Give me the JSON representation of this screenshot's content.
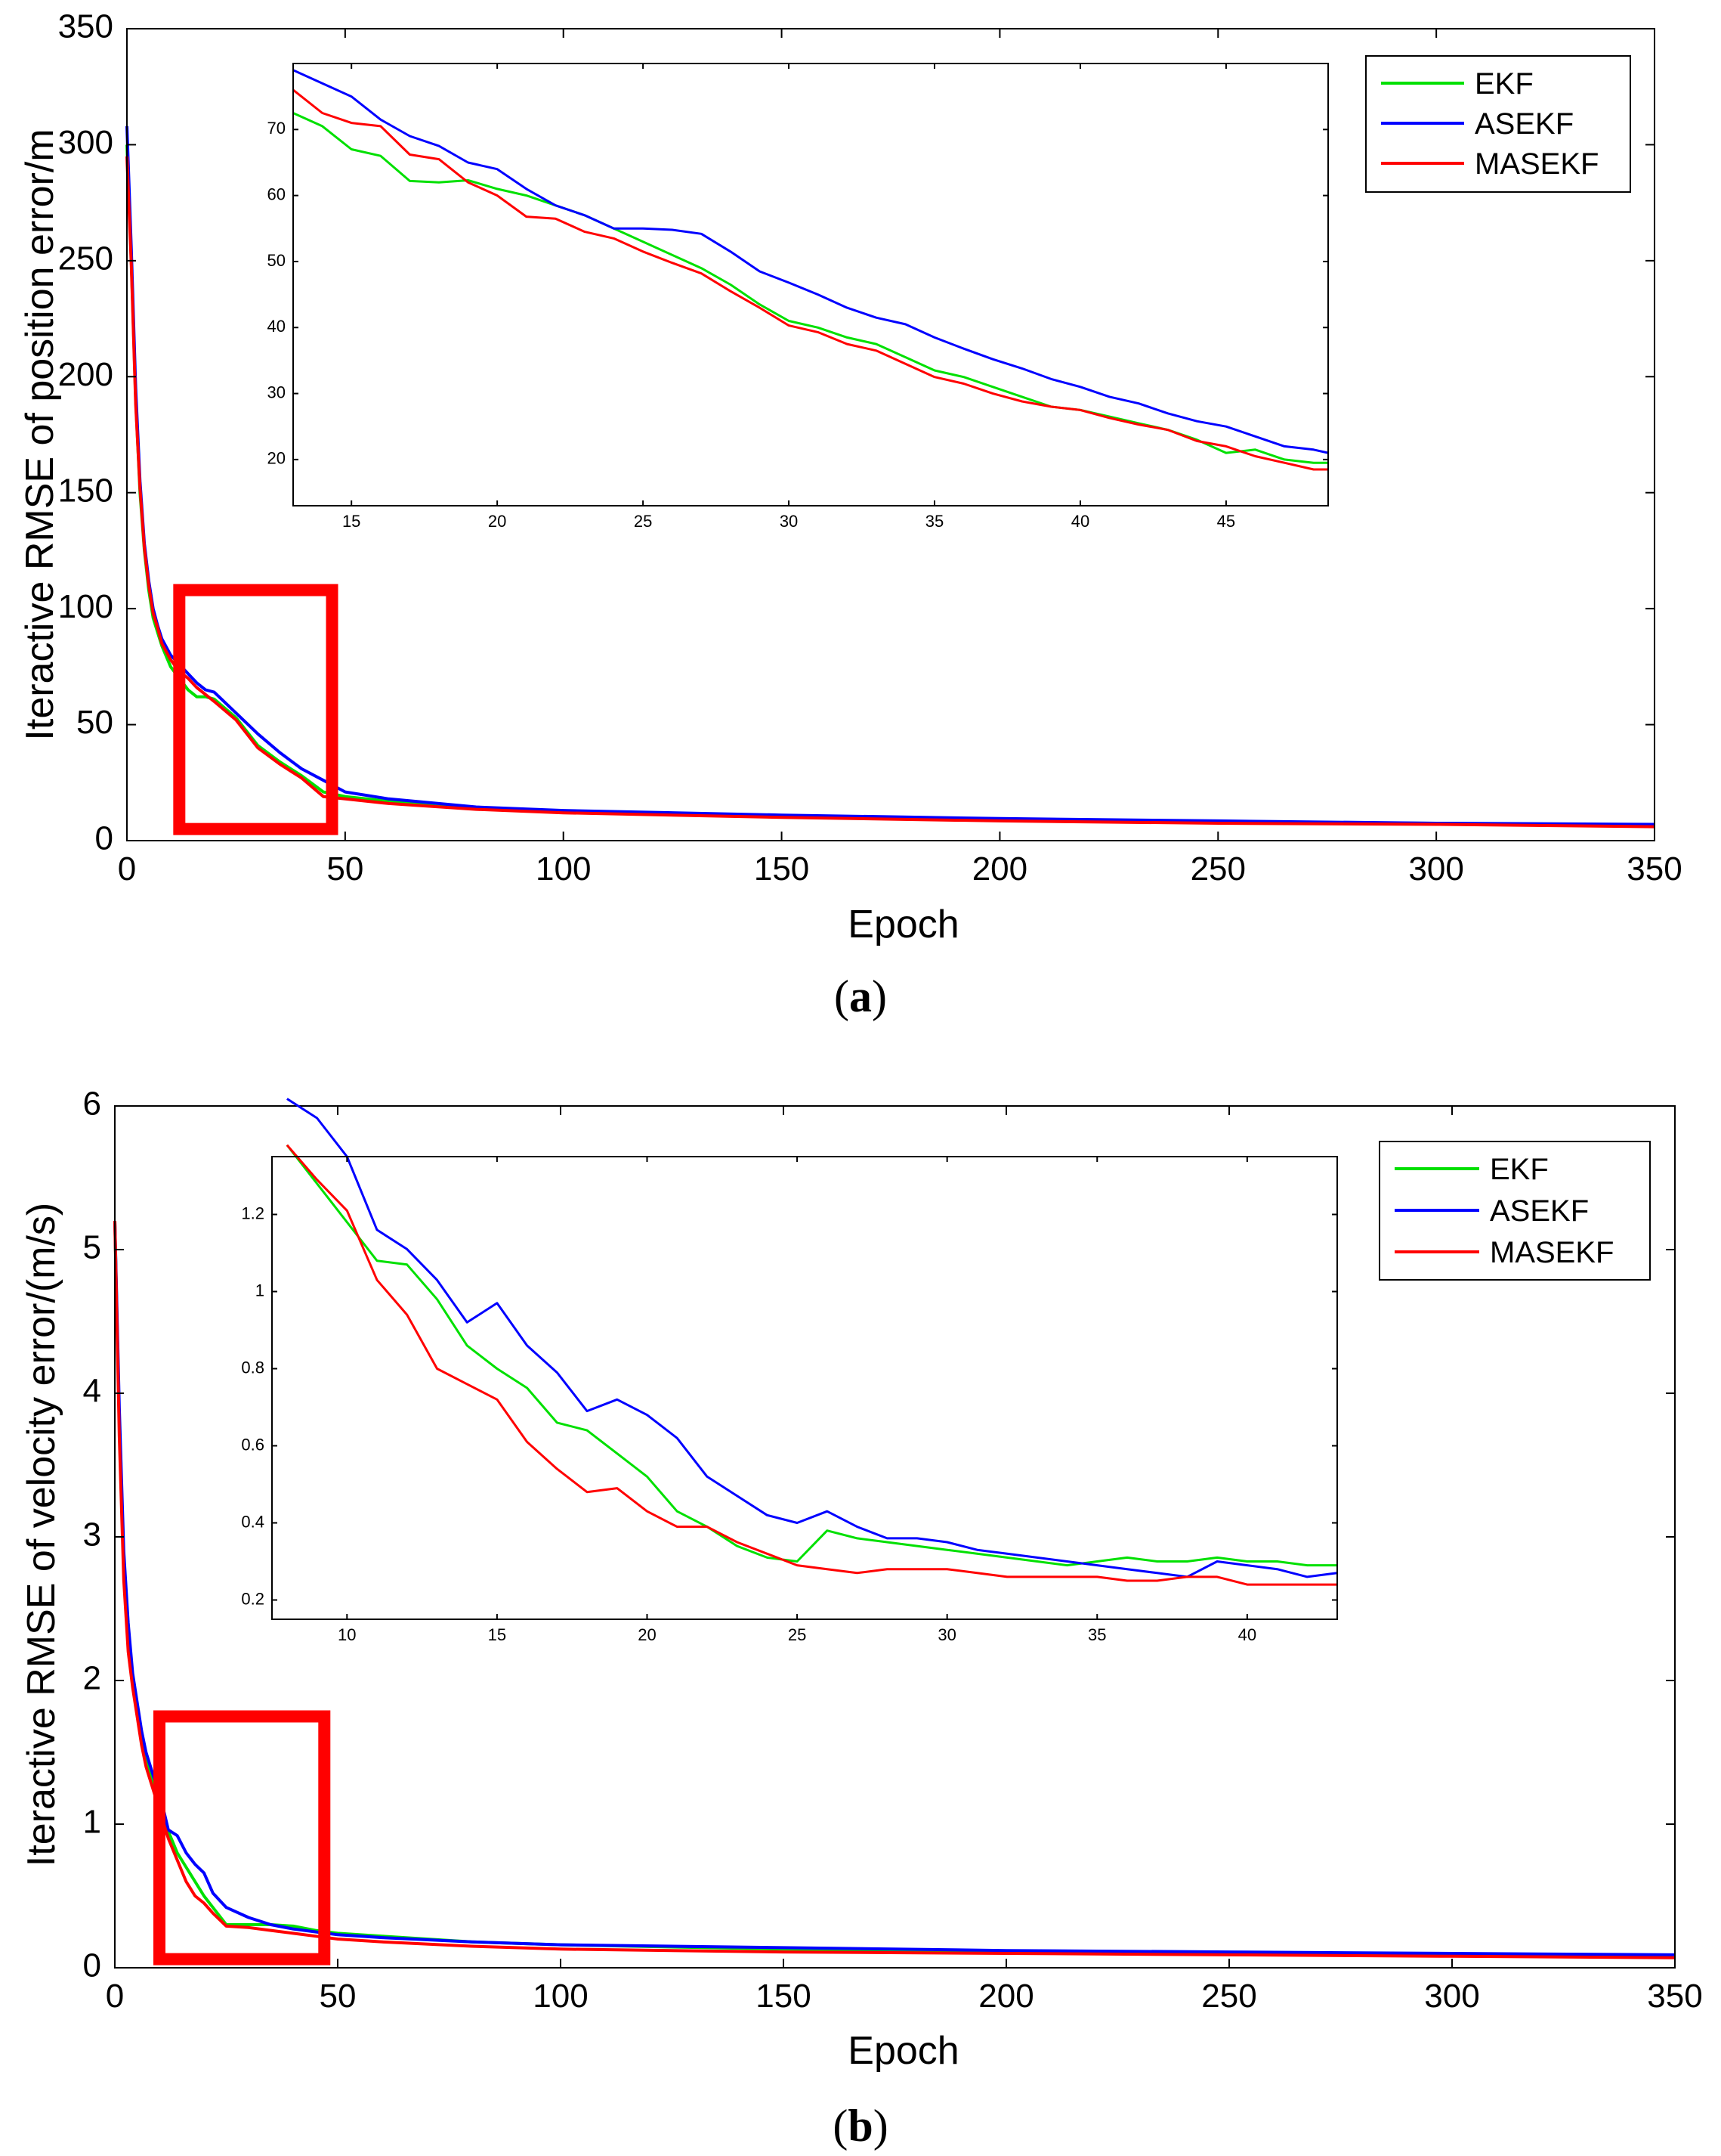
{
  "figure": {
    "caption_a": {
      "open": "(",
      "letter": "a",
      "close": ")"
    },
    "caption_b": {
      "open": "(",
      "letter": "b",
      "close": ")"
    }
  },
  "colors": {
    "EKF": "#00e000",
    "ASEKF": "#0000ff",
    "MASEKF": "#ff0000",
    "box": "#ff0000"
  },
  "chart_data": [
    {
      "id": "a",
      "type": "line",
      "xlabel": "Epoch",
      "ylabel": "Iteractive RMSE of position error/m",
      "xlim": [
        0,
        350
      ],
      "ylim": [
        0,
        350
      ],
      "xticks": [
        0,
        50,
        100,
        150,
        200,
        250,
        300,
        350
      ],
      "yticks": [
        0,
        50,
        100,
        150,
        200,
        250,
        300,
        350
      ],
      "legend": [
        "EKF",
        "ASEKF",
        "MASEKF"
      ],
      "legend_position": "top-right",
      "highlight_box": {
        "x": [
          12,
          47
        ],
        "y": [
          5,
          108
        ]
      },
      "series": [
        {
          "name": "EKF",
          "x": [
            0,
            1,
            2,
            3,
            4,
            5,
            6,
            7,
            8,
            10,
            12,
            14,
            16,
            18,
            20,
            25,
            30,
            35,
            40,
            45,
            50,
            60,
            80,
            100,
            150,
            200,
            250,
            300,
            350
          ],
          "values": [
            300,
            250,
            190,
            150,
            125,
            108,
            96,
            90,
            84,
            75,
            70,
            65,
            62,
            62,
            61,
            53,
            41,
            34,
            28,
            21,
            19,
            17,
            14,
            12.5,
            10.5,
            9,
            8,
            7.5,
            6.5
          ]
        },
        {
          "name": "ASEKF",
          "x": [
            0,
            1,
            2,
            3,
            4,
            5,
            6,
            7,
            8,
            10,
            12,
            14,
            16,
            18,
            20,
            25,
            30,
            35,
            40,
            45,
            50,
            60,
            80,
            100,
            150,
            200,
            250,
            300,
            350
          ],
          "values": [
            308,
            255,
            195,
            155,
            128,
            112,
            100,
            93,
            87,
            80,
            76,
            72,
            68,
            65,
            64,
            55,
            46,
            38,
            31,
            26,
            21,
            18,
            14.5,
            13,
            11,
            9.5,
            8.5,
            7.5,
            7
          ]
        },
        {
          "name": "MASEKF",
          "x": [
            0,
            1,
            2,
            3,
            4,
            5,
            6,
            7,
            8,
            10,
            12,
            14,
            16,
            18,
            20,
            25,
            30,
            35,
            40,
            45,
            50,
            60,
            80,
            100,
            150,
            200,
            250,
            300,
            350
          ],
          "values": [
            295,
            248,
            188,
            152,
            126,
            110,
            98,
            92,
            85,
            78,
            73,
            70,
            66,
            63,
            60,
            52,
            40,
            33,
            27,
            19,
            18,
            16,
            13.5,
            12,
            10,
            8.5,
            7.5,
            7,
            6
          ]
        }
      ],
      "inset": {
        "xlim": [
          13,
          48.5
        ],
        "ylim": [
          13,
          80
        ],
        "xticks": [
          15,
          20,
          25,
          30,
          35,
          40,
          45
        ],
        "yticks": [
          20,
          30,
          40,
          50,
          60,
          70
        ],
        "series": [
          {
            "name": "EKF",
            "x": [
              13,
              14,
              15,
              16,
              17,
              18,
              19,
              20,
              21,
              22,
              23,
              24,
              25,
              26,
              27,
              28,
              29,
              30,
              31,
              32,
              33,
              34,
              35,
              36,
              37,
              38,
              39,
              40,
              41,
              42,
              43,
              44,
              45,
              46,
              47,
              48,
              48.5
            ],
            "values": [
              72.5,
              70.5,
              67,
              66,
              62.2,
              62,
              62.3,
              61,
              60,
              58.5,
              57,
              55,
              53,
              51,
              49,
              46.5,
              43.5,
              41,
              40,
              38.5,
              37.5,
              35.5,
              33.5,
              32.5,
              31,
              29.5,
              28,
              27.5,
              26.5,
              25.5,
              24.5,
              23,
              21,
              21.5,
              20,
              19.5,
              19.5
            ]
          },
          {
            "name": "ASEKF",
            "x": [
              13,
              14,
              15,
              16,
              17,
              18,
              19,
              20,
              21,
              22,
              23,
              24,
              25,
              26,
              27,
              28,
              29,
              30,
              31,
              32,
              33,
              34,
              35,
              36,
              37,
              38,
              39,
              40,
              41,
              42,
              43,
              44,
              45,
              46,
              47,
              48,
              48.5
            ],
            "values": [
              79,
              77,
              75,
              71.5,
              69,
              67.5,
              65,
              64,
              61,
              58.5,
              57,
              55,
              55,
              54.8,
              54.2,
              51.5,
              48.5,
              46.8,
              45,
              43,
              41.5,
              40.5,
              38.5,
              36.8,
              35.2,
              33.8,
              32.2,
              31,
              29.5,
              28.5,
              27,
              25.8,
              25,
              23.5,
              22,
              21.5,
              21
            ]
          },
          {
            "name": "MASEKF",
            "x": [
              13,
              14,
              15,
              16,
              17,
              18,
              19,
              20,
              21,
              22,
              23,
              24,
              25,
              26,
              27,
              28,
              29,
              30,
              31,
              32,
              33,
              34,
              35,
              36,
              37,
              38,
              39,
              40,
              41,
              42,
              43,
              44,
              45,
              46,
              47,
              48,
              48.5
            ],
            "values": [
              76,
              72.5,
              71,
              70.5,
              66.2,
              65.5,
              62,
              60,
              56.8,
              56.5,
              54.5,
              53.5,
              51.5,
              49.8,
              48.2,
              45.5,
              43,
              40.3,
              39.3,
              37.5,
              36.5,
              34.5,
              32.5,
              31.5,
              30,
              28.8,
              28,
              27.5,
              26.3,
              25.3,
              24.5,
              22.8,
              22,
              20.5,
              19.5,
              18.5,
              18.5
            ]
          }
        ]
      }
    },
    {
      "id": "b",
      "type": "line",
      "xlabel": "Epoch",
      "ylabel": "Iteractive RMSE of velocity error/(m/s)",
      "xlim": [
        0,
        350
      ],
      "ylim": [
        0,
        6
      ],
      "xticks": [
        0,
        50,
        100,
        150,
        200,
        250,
        300,
        350
      ],
      "yticks": [
        0,
        1,
        2,
        3,
        4,
        5,
        6
      ],
      "legend": [
        "EKF",
        "ASEKF",
        "MASEKF"
      ],
      "legend_position": "top-right",
      "highlight_box": {
        "x": [
          10,
          47
        ],
        "y": [
          0.06,
          1.75
        ]
      },
      "series": [
        {
          "name": "EKF",
          "x": [
            0,
            1,
            2,
            3,
            4,
            5,
            6,
            7,
            8,
            9,
            10,
            12,
            14,
            16,
            18,
            20,
            22,
            25,
            30,
            35,
            40,
            45,
            50,
            60,
            80,
            100,
            150,
            200,
            250,
            300,
            350
          ],
          "values": [
            5.2,
            3.8,
            2.8,
            2.3,
            2,
            1.8,
            1.6,
            1.45,
            1.35,
            1.25,
            1.15,
            0.95,
            0.8,
            0.7,
            0.6,
            0.5,
            0.42,
            0.3,
            0.3,
            0.3,
            0.29,
            0.26,
            0.24,
            0.22,
            0.18,
            0.16,
            0.13,
            0.11,
            0.1,
            0.09,
            0.08
          ]
        },
        {
          "name": "ASEKF",
          "x": [
            0,
            1,
            2,
            3,
            4,
            5,
            6,
            7,
            8,
            9,
            10,
            12,
            14,
            16,
            18,
            20,
            22,
            25,
            30,
            35,
            40,
            45,
            50,
            60,
            80,
            100,
            150,
            200,
            250,
            300,
            350
          ],
          "values": [
            5.2,
            3.9,
            2.9,
            2.4,
            2.05,
            1.85,
            1.65,
            1.5,
            1.4,
            1.3,
            1.22,
            0.96,
            0.92,
            0.8,
            0.72,
            0.66,
            0.52,
            0.42,
            0.35,
            0.3,
            0.27,
            0.25,
            0.23,
            0.21,
            0.18,
            0.16,
            0.14,
            0.12,
            0.11,
            0.1,
            0.09
          ]
        },
        {
          "name": "MASEKF",
          "x": [
            0,
            1,
            2,
            3,
            4,
            5,
            6,
            7,
            8,
            9,
            10,
            12,
            14,
            16,
            18,
            20,
            22,
            25,
            30,
            35,
            40,
            45,
            50,
            60,
            80,
            100,
            150,
            200,
            250,
            300,
            350
          ],
          "values": [
            5.2,
            3.7,
            2.7,
            2.2,
            1.95,
            1.75,
            1.55,
            1.4,
            1.3,
            1.2,
            1.1,
            0.9,
            0.75,
            0.6,
            0.5,
            0.45,
            0.38,
            0.29,
            0.28,
            0.26,
            0.24,
            0.22,
            0.2,
            0.18,
            0.15,
            0.13,
            0.11,
            0.1,
            0.09,
            0.08,
            0.07
          ]
        }
      ],
      "inset": {
        "xlim": [
          7.5,
          43
        ],
        "ylim": [
          0.15,
          1.35
        ],
        "xticks": [
          10,
          15,
          20,
          25,
          30,
          35,
          40
        ],
        "yticks": [
          0.2,
          0.4,
          0.6,
          0.8,
          1,
          1.2
        ],
        "series": [
          {
            "name": "EKF",
            "x": [
              8,
              9,
              10,
              11,
              12,
              13,
              14,
              15,
              16,
              17,
              18,
              19,
              20,
              21,
              22,
              23,
              24,
              25,
              26,
              27,
              28,
              29,
              30,
              31,
              32,
              33,
              34,
              35,
              36,
              37,
              38,
              39,
              40,
              41,
              42,
              43
            ],
            "values": [
              1.38,
              1.28,
              1.18,
              1.08,
              1.07,
              0.98,
              0.86,
              0.8,
              0.75,
              0.66,
              0.64,
              0.58,
              0.52,
              0.43,
              0.39,
              0.34,
              0.31,
              0.3,
              0.38,
              0.36,
              0.35,
              0.34,
              0.33,
              0.32,
              0.31,
              0.3,
              0.29,
              0.3,
              0.31,
              0.3,
              0.3,
              0.31,
              0.3,
              0.3,
              0.29,
              0.29
            ]
          },
          {
            "name": "ASEKF",
            "x": [
              8,
              9,
              10,
              11,
              12,
              13,
              14,
              15,
              16,
              17,
              18,
              19,
              20,
              21,
              22,
              23,
              24,
              25,
              26,
              27,
              28,
              29,
              30,
              31,
              32,
              33,
              34,
              35,
              36,
              37,
              38,
              39,
              40,
              41,
              42,
              43
            ],
            "values": [
              1.5,
              1.45,
              1.35,
              1.16,
              1.11,
              1.03,
              0.92,
              0.97,
              0.86,
              0.79,
              0.69,
              0.72,
              0.68,
              0.62,
              0.52,
              0.47,
              0.42,
              0.4,
              0.43,
              0.39,
              0.36,
              0.36,
              0.35,
              0.33,
              0.32,
              0.31,
              0.3,
              0.29,
              0.28,
              0.27,
              0.26,
              0.3,
              0.29,
              0.28,
              0.26,
              0.27
            ]
          },
          {
            "name": "MASEKF",
            "x": [
              8,
              9,
              10,
              11,
              12,
              13,
              14,
              15,
              16,
              17,
              18,
              19,
              20,
              21,
              22,
              23,
              24,
              25,
              26,
              27,
              28,
              29,
              30,
              31,
              32,
              33,
              34,
              35,
              36,
              37,
              38,
              39,
              40,
              41,
              42,
              43
            ],
            "values": [
              1.38,
              1.29,
              1.21,
              1.03,
              0.94,
              0.8,
              0.76,
              0.72,
              0.61,
              0.54,
              0.48,
              0.49,
              0.43,
              0.39,
              0.39,
              0.35,
              0.32,
              0.29,
              0.28,
              0.27,
              0.28,
              0.28,
              0.28,
              0.27,
              0.26,
              0.26,
              0.26,
              0.26,
              0.25,
              0.25,
              0.26,
              0.26,
              0.24,
              0.24,
              0.24,
              0.24
            ]
          }
        ]
      }
    }
  ]
}
